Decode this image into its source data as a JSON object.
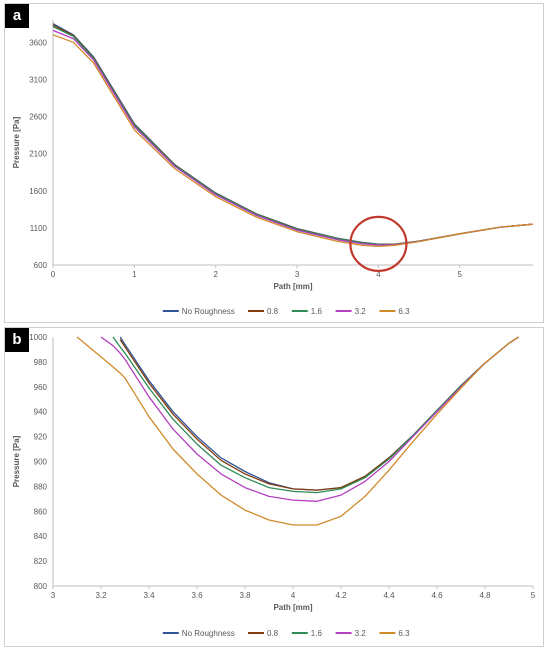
{
  "chart_data": [
    {
      "panel": "a",
      "type": "line",
      "xlabel": "Path [mm]",
      "ylabel": "Pressure [Pa]",
      "xlim": [
        0,
        5.9
      ],
      "ylim": [
        600,
        3900
      ],
      "xticks": [
        0,
        1,
        2,
        3,
        4,
        5
      ],
      "yticks": [
        600,
        1100,
        1600,
        2100,
        2600,
        3100,
        3600
      ],
      "legend_position": "bottom",
      "annotation": "red circle around the minimum near 4 mm",
      "x": [
        0,
        0.25,
        0.5,
        0.75,
        1.0,
        1.5,
        2.0,
        2.5,
        3.0,
        3.5,
        3.8,
        4.0,
        4.2,
        4.5,
        5.0,
        5.5,
        5.9
      ],
      "series": [
        {
          "name": "No Roughness",
          "color": "#2f5597",
          "values": [
            3850,
            3700,
            3400,
            2950,
            2500,
            1950,
            1570,
            1290,
            1090,
            960,
            905,
            880,
            880,
            920,
            1020,
            1110,
            1150
          ]
        },
        {
          "name": "0.8",
          "color": "#843c0c",
          "values": [
            3830,
            3690,
            3390,
            2940,
            2490,
            1945,
            1565,
            1285,
            1085,
            957,
            903,
            878,
            879,
            920,
            1020,
            1110,
            1150
          ]
        },
        {
          "name": "1.6",
          "color": "#2e8b57",
          "values": [
            3810,
            3680,
            3380,
            2930,
            2480,
            1940,
            1560,
            1280,
            1080,
            955,
            901,
            876,
            878,
            920,
            1020,
            1110,
            1150
          ]
        },
        {
          "name": "3.2",
          "color": "#b43fc0",
          "values": [
            3760,
            3650,
            3360,
            2910,
            2460,
            1925,
            1545,
            1268,
            1068,
            940,
            887,
            868,
            875,
            918,
            1020,
            1110,
            1150
          ]
        },
        {
          "name": "6.3",
          "color": "#d08a2a",
          "values": [
            3700,
            3600,
            3320,
            2870,
            2420,
            1895,
            1520,
            1245,
            1048,
            918,
            866,
            850,
            866,
            915,
            1020,
            1110,
            1150
          ]
        }
      ]
    },
    {
      "panel": "b",
      "type": "line",
      "xlabel": "Path [mm]",
      "ylabel": "Pressure [Pa]",
      "xlim": [
        3,
        5
      ],
      "ylim": [
        800,
        1000
      ],
      "xticks": [
        3,
        3.2,
        3.4,
        3.6,
        3.8,
        4,
        4.2,
        4.4,
        4.6,
        4.8,
        5
      ],
      "yticks": [
        800,
        820,
        840,
        860,
        880,
        900,
        920,
        940,
        960,
        980,
        1000
      ],
      "legend_position": "bottom",
      "x": [
        3.1,
        3.2,
        3.25,
        3.28,
        3.3,
        3.4,
        3.5,
        3.6,
        3.7,
        3.8,
        3.9,
        4.0,
        4.1,
        4.2,
        4.3,
        4.4,
        4.5,
        4.6,
        4.7,
        4.8,
        4.9,
        4.94
      ],
      "series": [
        {
          "name": "No Roughness",
          "color": "#2f5597",
          "values": [
            null,
            null,
            null,
            1000,
            994,
            965,
            940,
            920,
            903,
            892,
            883,
            878,
            877,
            879,
            888,
            903,
            921,
            941,
            961,
            979,
            995,
            1000
          ]
        },
        {
          "name": "0.8",
          "color": "#843c0c",
          "values": [
            null,
            null,
            null,
            998,
            992,
            963,
            938,
            918,
            901,
            890,
            882,
            878,
            877,
            879,
            888,
            903,
            921,
            941,
            961,
            979,
            995,
            1000
          ]
        },
        {
          "name": "1.6",
          "color": "#2e8b57",
          "values": [
            null,
            null,
            1000,
            992,
            987,
            959,
            934,
            914,
            897,
            887,
            879,
            876,
            875,
            878,
            887,
            902,
            921,
            941,
            961,
            979,
            995,
            1000
          ]
        },
        {
          "name": "3.2",
          "color": "#b43fc0",
          "values": [
            null,
            1000,
            993,
            987,
            982,
            952,
            926,
            906,
            890,
            879,
            872,
            869,
            868,
            873,
            884,
            900,
            920,
            940,
            960,
            979,
            995,
            1000
          ]
        },
        {
          "name": "6.3",
          "color": "#d08a2a",
          "values": [
            1000,
            984,
            976,
            971,
            967,
            936,
            910,
            890,
            873,
            861,
            853,
            849,
            849,
            856,
            872,
            893,
            916,
            938,
            959,
            979,
            995,
            1000
          ]
        }
      ]
    }
  ]
}
